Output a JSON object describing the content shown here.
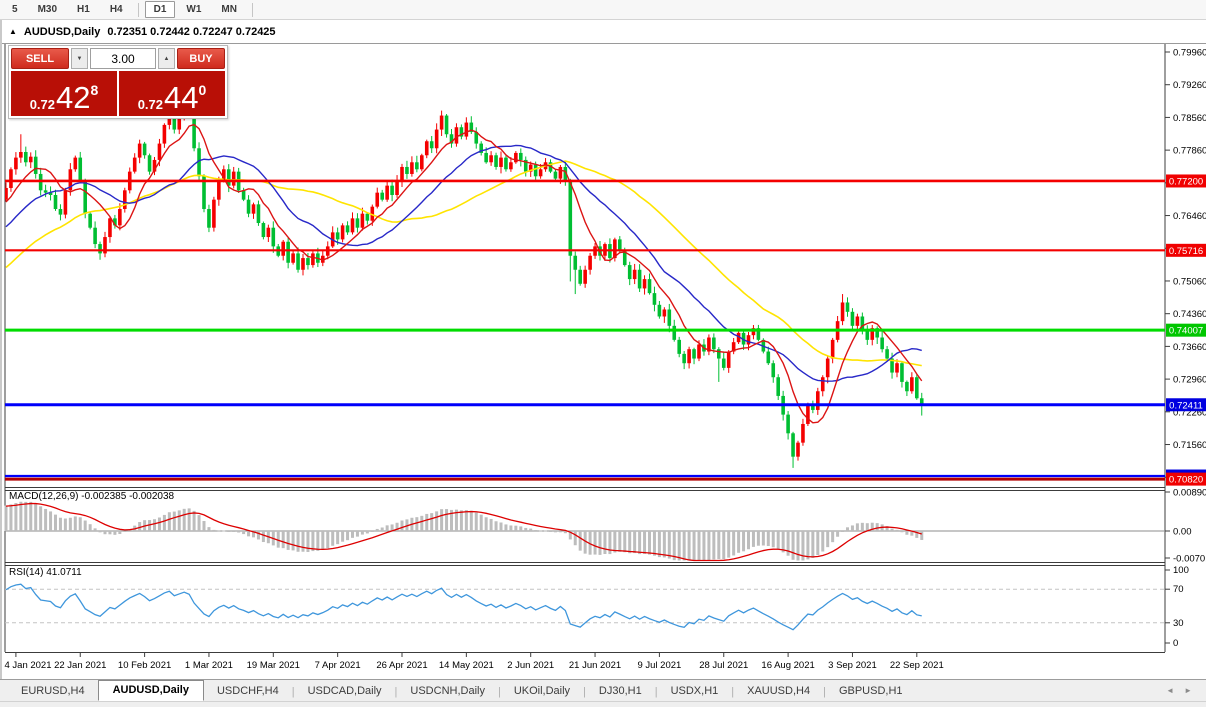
{
  "toolbar": {
    "timeframes": [
      "5",
      "M30",
      "H1",
      "H4",
      "D1",
      "W1",
      "MN"
    ],
    "active": "D1",
    "dividers_after": [
      "H4",
      "MN"
    ]
  },
  "chart_header": {
    "collapse_icon": "up-triangle",
    "title": "AUDUSD,Daily",
    "ohlc": "0.72351 0.72442 0.72247 0.72425"
  },
  "trade_panel": {
    "sell_label": "SELL",
    "buy_label": "BUY",
    "volume": "3.00",
    "sell_price": {
      "prefix": "0.72",
      "big": "42",
      "sup": "8"
    },
    "buy_price": {
      "prefix": "0.72",
      "big": "44",
      "sup": "0"
    }
  },
  "indicators": {
    "macd_label": "MACD(12,26,9) -0.002385 -0.002038",
    "macd_axis": [
      "0.008904",
      "0.00",
      "-0.00701"
    ],
    "rsi_label": "RSI(14) 41.0711",
    "rsi_axis": [
      "100",
      "70",
      "30",
      "0"
    ]
  },
  "price_axis_ticks": [
    "0.79960",
    "0.79260",
    "0.78560",
    "0.77860",
    "0.77160",
    "0.76460",
    "0.75760",
    "0.75060",
    "0.74360",
    "0.73660",
    "0.72960",
    "0.72260",
    "0.71560",
    "0.70860"
  ],
  "price_badges": [
    {
      "text": "0.77200",
      "level": 0.772,
      "color": "#f00000"
    },
    {
      "text": "0.75716",
      "level": 0.75716,
      "color": "#f00000"
    },
    {
      "text": "0.74007",
      "level": 0.74007,
      "color": "#00c600"
    },
    {
      "text": "0.72411",
      "level": 0.72411,
      "color": "#0000e0"
    },
    {
      "text": "0.70886",
      "level": 0.70886,
      "color": "#0000e0"
    },
    {
      "text": "0.70820",
      "level": 0.7082,
      "color": "#f00000"
    }
  ],
  "date_axis": [
    "4 Jan 2021",
    "22 Jan 2021",
    "10 Feb 2021",
    "1 Mar 2021",
    "19 Mar 2021",
    "7 Apr 2021",
    "26 Apr 2021",
    "14 May 2021",
    "2 Jun 2021",
    "21 Jun 2021",
    "9 Jul 2021",
    "28 Jul 2021",
    "16 Aug 2021",
    "3 Sep 2021",
    "22 Sep 2021"
  ],
  "tabs": {
    "items": [
      "EURUSD,H4",
      "AUDUSD,Daily",
      "USDCHF,H4",
      "USDCAD,Daily",
      "USDCNH,Daily",
      "UKOil,Daily",
      "DJ30,H1",
      "USDX,H1",
      "XAUUSD,H4",
      "GBPUSD,H1"
    ],
    "active": "AUDUSD,Daily",
    "scroll_left_icon": "left-arrow",
    "scroll_right_icon": "right-arrow"
  },
  "chart_data": {
    "type": "candlestick+indicators",
    "symbol": "AUDUSD",
    "timeframe": "Daily",
    "ohlc_display": [
      0.72351,
      0.72442,
      0.72247,
      0.72425
    ],
    "colors": {
      "up_candle": "#f40000",
      "down_candle": "#00be32",
      "ma_fast": "#dc1414",
      "ma_mid": "#2828c8",
      "ma_slow": "#ffe400",
      "macd_hist": "#bdbdbd",
      "macd_signal": "#dd0000",
      "rsi_line": "#3e96dc"
    },
    "price_range": [
      0.7082,
      0.7996
    ],
    "open_first": 0.768,
    "closes": [
      0.7705,
      0.7745,
      0.777,
      0.7782,
      0.776,
      0.7772,
      0.7735,
      0.77,
      0.7695,
      0.769,
      0.766,
      0.7648,
      0.77,
      0.7745,
      0.777,
      0.772,
      0.765,
      0.762,
      0.7585,
      0.7565,
      0.76,
      0.764,
      0.7625,
      0.766,
      0.77,
      0.774,
      0.777,
      0.78,
      0.7775,
      0.774,
      0.7765,
      0.78,
      0.784,
      0.7865,
      0.783,
      0.7855,
      0.788,
      0.7865,
      0.779,
      0.773,
      0.766,
      0.762,
      0.768,
      0.772,
      0.7745,
      0.771,
      0.774,
      0.77,
      0.768,
      0.765,
      0.767,
      0.763,
      0.76,
      0.762,
      0.758,
      0.756,
      0.759,
      0.7545,
      0.7565,
      0.753,
      0.7555,
      0.754,
      0.7565,
      0.7545,
      0.756,
      0.758,
      0.761,
      0.7595,
      0.7625,
      0.761,
      0.764,
      0.762,
      0.765,
      0.7635,
      0.7665,
      0.7695,
      0.768,
      0.771,
      0.769,
      0.772,
      0.775,
      0.7735,
      0.776,
      0.7745,
      0.7775,
      0.7805,
      0.779,
      0.783,
      0.786,
      0.782,
      0.78,
      0.7835,
      0.7815,
      0.7845,
      0.7825,
      0.78,
      0.778,
      0.776,
      0.7775,
      0.775,
      0.777,
      0.7745,
      0.776,
      0.778,
      0.7765,
      0.774,
      0.7755,
      0.773,
      0.7745,
      0.776,
      0.774,
      0.7725,
      0.775,
      0.772,
      0.756,
      0.753,
      0.75,
      0.753,
      0.756,
      0.758,
      0.756,
      0.7585,
      0.7555,
      0.7595,
      0.757,
      0.754,
      0.751,
      0.753,
      0.749,
      0.751,
      0.748,
      0.7455,
      0.743,
      0.7445,
      0.741,
      0.738,
      0.735,
      0.733,
      0.736,
      0.734,
      0.737,
      0.7355,
      0.7385,
      0.736,
      0.734,
      0.732,
      0.7355,
      0.7375,
      0.7395,
      0.737,
      0.739,
      0.7405,
      0.738,
      0.7355,
      0.733,
      0.73,
      0.726,
      0.722,
      0.718,
      0.713,
      0.716,
      0.72,
      0.724,
      0.723,
      0.727,
      0.73,
      0.734,
      0.738,
      0.742,
      0.746,
      0.744,
      0.741,
      0.743,
      0.74,
      0.738,
      0.7405,
      0.7385,
      0.736,
      0.734,
      0.731,
      0.733,
      0.729,
      0.727,
      0.73,
      0.7255,
      0.72425
    ],
    "wick_overrides": {
      "3": {
        "high": 0.782
      },
      "114": {
        "low": 0.7505
      },
      "115": {
        "low": 0.7478
      },
      "144": {
        "low": 0.729
      },
      "159": {
        "low": 0.7106
      },
      "169": {
        "high": 0.7478
      },
      "185": {
        "low": 0.7218
      }
    },
    "prehistory": {
      "start": 0.727,
      "end": 0.7695,
      "count": 50,
      "zigzag": 0.0012
    },
    "ma_periods": {
      "fast": 8,
      "mid": 20,
      "slow": 40
    },
    "hlines": [
      {
        "level": 0.772,
        "color": "#f40000",
        "width": 2.6
      },
      {
        "level": 0.75716,
        "color": "#f40000",
        "width": 2.2
      },
      {
        "level": 0.74007,
        "color": "#00dc00",
        "width": 3
      },
      {
        "level": 0.72411,
        "color": "#0000fa",
        "width": 3
      },
      {
        "level": 0.70886,
        "color": "#0000fa",
        "width": 2.2
      },
      {
        "level": 0.7082,
        "color": "#b40000",
        "width": 3
      }
    ],
    "macd": {
      "params": [
        12,
        26,
        9
      ],
      "current": [
        -0.002385,
        -0.002038
      ]
    },
    "rsi": {
      "period": 14,
      "current": 41.0711,
      "levels": [
        70,
        30
      ]
    }
  }
}
